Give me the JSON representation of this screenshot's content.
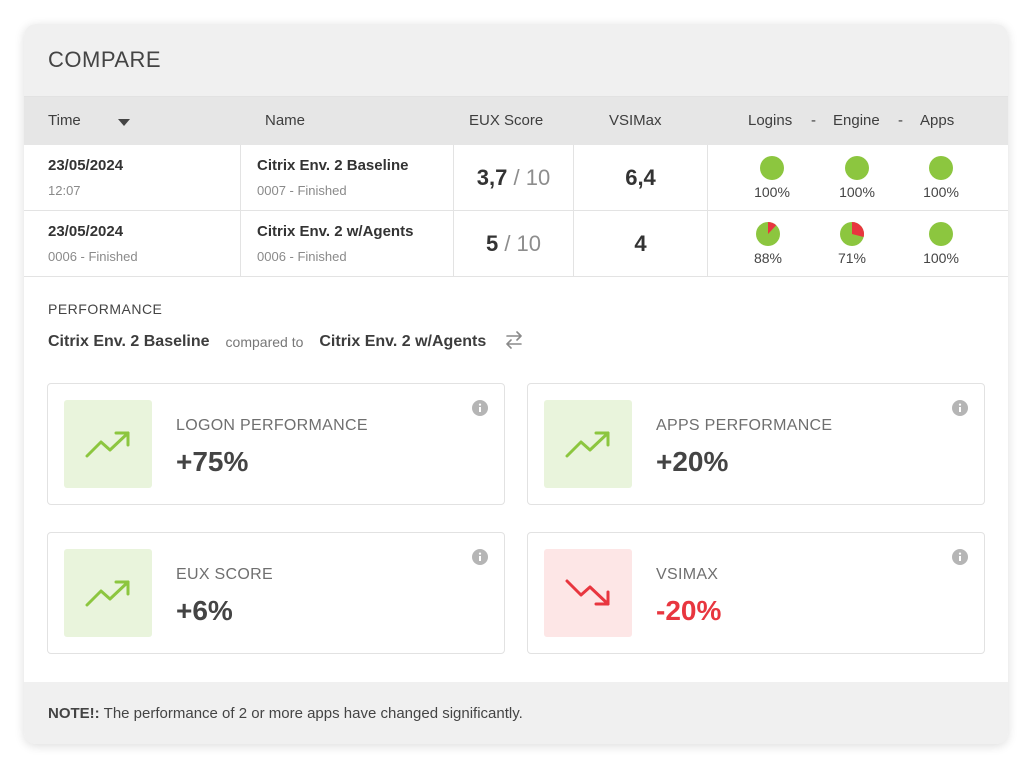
{
  "header": {
    "title": "COMPARE"
  },
  "table": {
    "columns": {
      "time": "Time",
      "name": "Name",
      "eux": "EUX Score",
      "vsimax": "VSIMax",
      "logins": "Logins",
      "dash1": "-",
      "engine": "Engine",
      "dash2": "-",
      "apps": "Apps"
    },
    "rows": [
      {
        "date": "23/05/2024",
        "time_sub": "12:07",
        "name": "Citrix Env. 2 Baseline",
        "name_sub": "0007 - Finished",
        "eux": "3,7",
        "eux_of": "/ 10",
        "vsimax": "6,4",
        "logins": {
          "label": "100%",
          "value": 100
        },
        "engine": {
          "label": "100%",
          "value": 100
        },
        "apps": {
          "label": "100%",
          "value": 100
        }
      },
      {
        "date": "23/05/2024",
        "time_sub": "0006 - Finished",
        "name": "Citrix Env. 2 w/Agents",
        "name_sub": "0006 - Finished",
        "eux": "5",
        "eux_of": "/ 10",
        "vsimax": "4",
        "logins": {
          "label": "88%",
          "value": 88
        },
        "engine": {
          "label": "71%",
          "value": 71
        },
        "apps": {
          "label": "100%",
          "value": 100
        }
      }
    ]
  },
  "performance": {
    "title": "PERFORMANCE",
    "baseline": "Citrix Env. 2 Baseline",
    "compared_text": "compared to",
    "target": "Citrix Env. 2 w/Agents",
    "tiles": [
      {
        "label": "LOGON PERFORMANCE",
        "value": "+75%",
        "trend": "up"
      },
      {
        "label": "APPS PERFORMANCE",
        "value": "+20%",
        "trend": "up"
      },
      {
        "label": "EUX SCORE",
        "value": "+6%",
        "trend": "up"
      },
      {
        "label": "VSIMAX",
        "value": "-20%",
        "trend": "down"
      }
    ]
  },
  "note": {
    "prefix": "NOTE!:",
    "text": "The performance of 2 or more apps have changed significantly."
  },
  "colors": {
    "good": "#8cc63f",
    "bad": "#e8363f",
    "good_bg": "#e9f4dc",
    "bad_bg": "#fde6e6",
    "text_good": "#444444",
    "text_bad": "#e8363f"
  },
  "icons": {
    "sort": "caret-down-icon",
    "swap": "swap-arrows-icon",
    "info": "info-icon",
    "trend_up": "trending-up-icon",
    "trend_down": "trending-down-icon"
  }
}
